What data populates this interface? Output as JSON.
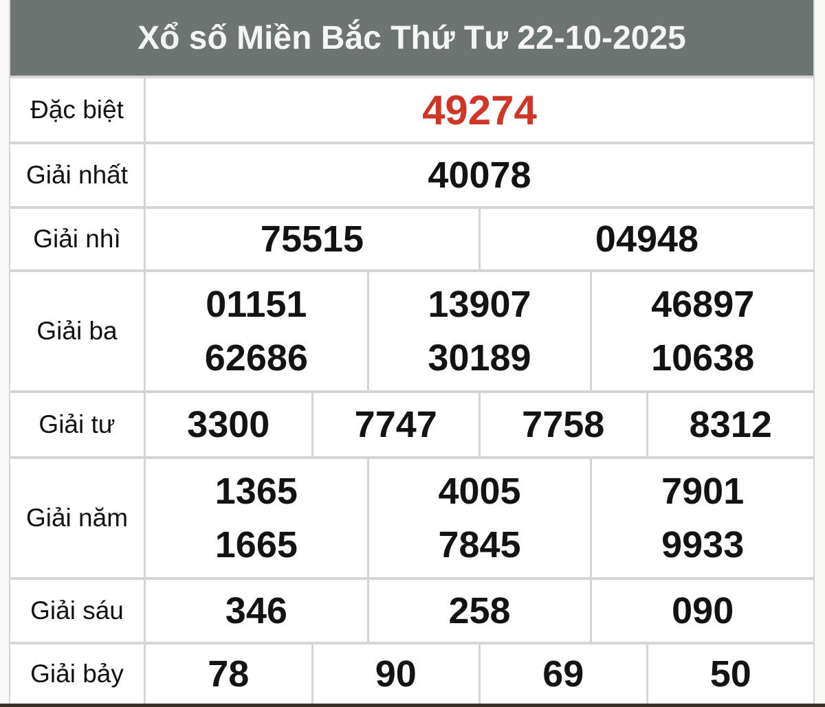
{
  "header": {
    "title": "Xổ số Miền Bắc Thứ Tư 22-10-2025"
  },
  "colors": {
    "header_bg": "#6d7471",
    "header_text": "#f5f5f5",
    "special_number": "#cd3728",
    "number": "#131313",
    "border": "#d5d5d5",
    "bottom_border": "#9a8063",
    "bottom_bar": "#3a3028"
  },
  "rows": [
    {
      "label": "Đặc biệt",
      "cells": [
        "49274"
      ]
    },
    {
      "label": "Giải nhất",
      "cells": [
        "40078"
      ]
    },
    {
      "label": "Giải nhì",
      "cells": [
        "75515",
        "04948"
      ]
    },
    {
      "label": "Giải ba",
      "cells": [
        "01151",
        "13907",
        "46897",
        "62686",
        "30189",
        "10638"
      ]
    },
    {
      "label": "Giải tư",
      "cells": [
        "3300",
        "7747",
        "7758",
        "8312"
      ]
    },
    {
      "label": "Giải năm",
      "cells": [
        "1365",
        "4005",
        "7901",
        "1665",
        "7845",
        "9933"
      ]
    },
    {
      "label": "Giải sáu",
      "cells": [
        "346",
        "258",
        "090"
      ]
    },
    {
      "label": "Giải bảy",
      "cells": [
        "78",
        "90",
        "69",
        "50"
      ]
    }
  ]
}
